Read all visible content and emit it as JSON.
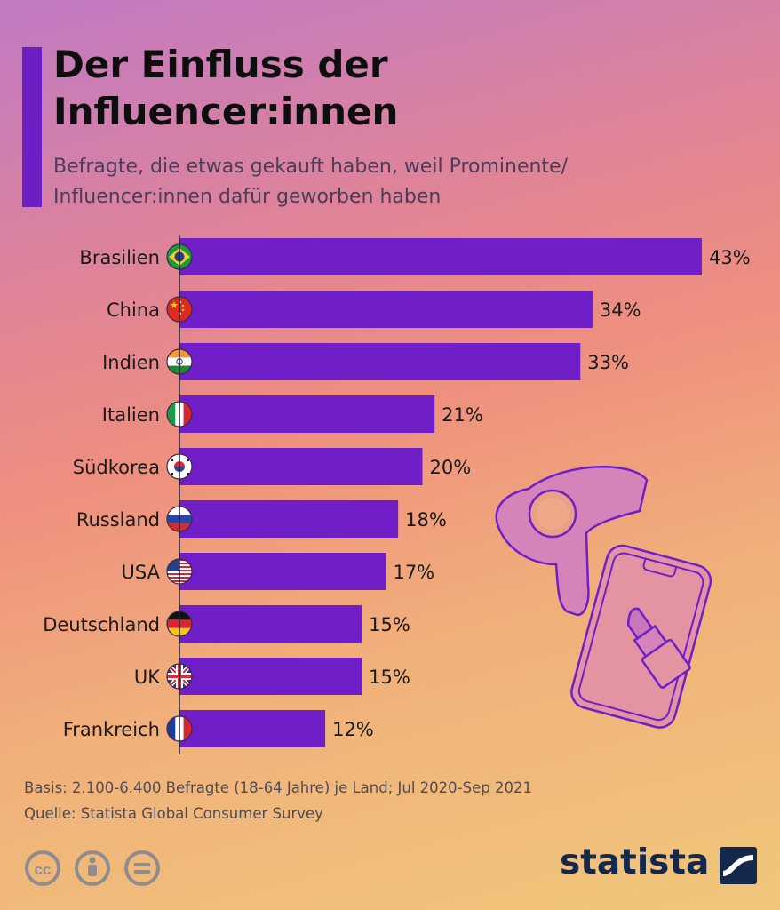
{
  "header": {
    "title_line1": "Der Einfluss der",
    "title_line2": "Influencer:innen",
    "subtitle_line1": "Befragte, die etwas gekauft haben, weil Prominente/",
    "subtitle_line2": "Influencer:innen dafür geworben haben"
  },
  "chart_data": {
    "type": "bar",
    "orientation": "horizontal",
    "categories": [
      "Brasilien",
      "China",
      "Indien",
      "Italien",
      "Südkorea",
      "Russland",
      "USA",
      "Deutschland",
      "UK",
      "Frankreich"
    ],
    "values": [
      43,
      34,
      33,
      21,
      20,
      18,
      17,
      15,
      15,
      12
    ],
    "value_labels": [
      "43%",
      "34%",
      "33%",
      "21%",
      "20%",
      "18%",
      "17%",
      "15%",
      "15%",
      "12%"
    ],
    "flags": [
      "brazil-flag-icon",
      "china-flag-icon",
      "india-flag-icon",
      "italy-flag-icon",
      "south-korea-flag-icon",
      "russia-flag-icon",
      "usa-flag-icon",
      "germany-flag-icon",
      "uk-flag-icon",
      "france-flag-icon"
    ],
    "xlim": [
      0,
      43
    ],
    "bar_color": "#6f1ec8",
    "grid": false
  },
  "footer": {
    "basis": "Basis: 2.100-6.400 Befragte (18-64 Jahre) je Land; Jul 2020-Sep 2021",
    "source": "Quelle: Statista Global Consumer Survey"
  },
  "license_icons": [
    "creative-commons-icon",
    "attribution-icon",
    "no-derivatives-icon"
  ],
  "logo": {
    "text": "statista"
  },
  "illustration": [
    "hair-dryer-icon",
    "smartphone-icon",
    "lipstick-icon"
  ]
}
